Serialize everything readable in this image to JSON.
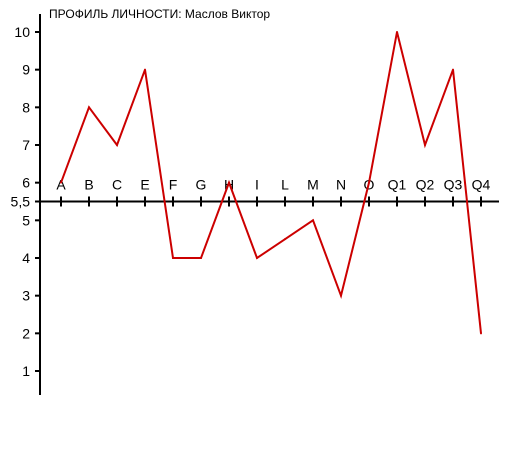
{
  "chart_data": {
    "type": "line",
    "title": "ПРОФИЛЬ ЛИЧНОСТИ: Маслов Виктор",
    "xlabel": "",
    "ylabel": "",
    "categories": [
      "A",
      "B",
      "C",
      "E",
      "F",
      "G",
      "H",
      "I",
      "L",
      "M",
      "N",
      "O",
      "Q1",
      "Q2",
      "Q3",
      "Q4"
    ],
    "values": [
      6,
      8,
      7,
      9,
      4,
      4,
      6,
      4,
      4.5,
      5,
      3,
      6,
      10,
      7,
      9,
      2
    ],
    "series": [
      {
        "values": [
          6,
          8,
          7,
          9,
          4,
          4,
          6,
          4,
          4.5,
          5,
          3,
          6,
          10,
          7,
          9,
          2
        ]
      }
    ],
    "ylim": [
      0.3,
      10.5
    ],
    "yticks": [
      1,
      2,
      3,
      4,
      5,
      5.5,
      6,
      7,
      8,
      9,
      10
    ],
    "ytick_labels": [
      "1",
      "2",
      "3",
      "4",
      "5",
      "5,5",
      "6",
      "7",
      "8",
      "9",
      "10"
    ],
    "x_axis_crosses_at": 5.5,
    "grid": false,
    "legend": "none",
    "colors": {
      "line": "#cc0000",
      "axis": "#000000",
      "text": "#000000"
    }
  }
}
